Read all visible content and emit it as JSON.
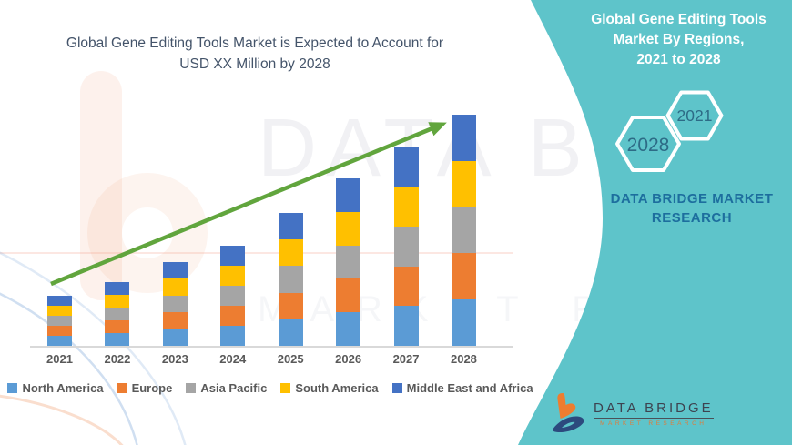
{
  "left_panel": {
    "title": "Global Gene Editing Tools Market is Expected to Account for\nUSD XX Million by 2028"
  },
  "chart_data": {
    "type": "bar",
    "subtype": "stacked-column",
    "title": "Global Gene Editing Tools Market is Expected to Account for USD XX Million by 2028",
    "categories": [
      "2021",
      "2022",
      "2023",
      "2024",
      "2025",
      "2026",
      "2027",
      "2028"
    ],
    "unit": "USD Million (exact values undisclosed, shown as XX)",
    "value_axis_hidden": true,
    "gridlines": false,
    "legend_position": "bottom",
    "trend_arrow": true,
    "arrow_color": "#61A53D",
    "series": [
      {
        "name": "North America",
        "color": "#5B9BD5",
        "values": [
          11,
          14,
          18.4,
          22,
          29.2,
          36.8,
          43.6,
          50.8
        ]
      },
      {
        "name": "Europe",
        "color": "#ED7D31",
        "values": [
          11,
          14,
          18.4,
          22,
          29.2,
          36.8,
          43.6,
          50.8
        ]
      },
      {
        "name": "Asia Pacific",
        "color": "#A5A5A5",
        "values": [
          11,
          14,
          18.4,
          22,
          29.2,
          36.8,
          43.6,
          50.8
        ]
      },
      {
        "name": "South America",
        "color": "#FFC000",
        "values": [
          11,
          14,
          18.4,
          22,
          29.2,
          36.8,
          43.6,
          50.8
        ]
      },
      {
        "name": "Middle East and Africa",
        "color": "#4472C4",
        "values": [
          11,
          14,
          18.4,
          22,
          29.2,
          36.8,
          43.6,
          50.8
        ]
      }
    ]
  },
  "right_panel": {
    "background_color": "#5EC4CA",
    "title": "Global Gene Editing Tools\nMarket By Regions,\n2021 to 2028",
    "hexagons": [
      {
        "label": "2028"
      },
      {
        "label": "2021"
      }
    ],
    "hexagon_text_color": "#2d6b86",
    "brand_text": "DATA BRIDGE MARKET\nRESEARCH"
  },
  "logo": {
    "name": "DATA BRIDGE",
    "subtitle": "MARKET RESEARCH"
  }
}
